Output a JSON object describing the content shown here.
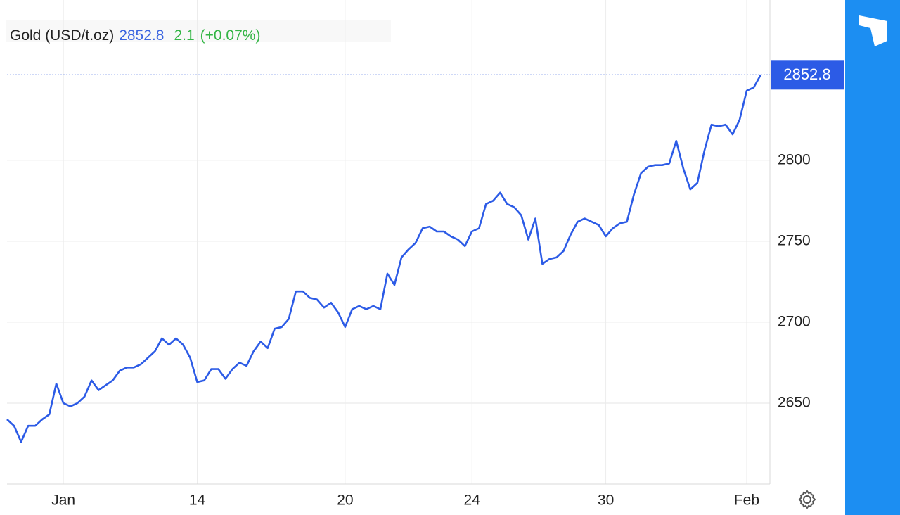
{
  "chart_data": {
    "type": "line",
    "title": "Gold (USD/t.oz)",
    "last_price": 2852.8,
    "change": 2.1,
    "change_percent": "(+0.07%)",
    "color": "#2c5be6",
    "categories": [
      null,
      null,
      null,
      null,
      null,
      null,
      null,
      null,
      "Jan",
      null,
      null,
      null,
      null,
      null,
      null,
      null,
      null,
      null,
      null,
      null,
      null,
      null,
      null,
      null,
      null,
      null,
      null,
      "14",
      null,
      null,
      null,
      null,
      null,
      null,
      null,
      null,
      null,
      null,
      null,
      null,
      null,
      null,
      null,
      null,
      null,
      null,
      null,
      null,
      "20",
      null,
      null,
      null,
      null,
      null,
      null,
      null,
      null,
      null,
      null,
      null,
      null,
      null,
      null,
      null,
      null,
      null,
      "24",
      null,
      null,
      null,
      null,
      null,
      null,
      null,
      null,
      null,
      null,
      null,
      null,
      null,
      null,
      null,
      null,
      null,
      null,
      "30",
      null,
      null,
      null,
      null,
      null,
      null,
      null,
      null,
      null,
      null,
      null,
      null,
      null,
      null,
      null,
      null,
      null,
      null,
      null,
      "Feb",
      null,
      null
    ],
    "values": [
      2640,
      2636,
      2626,
      2636,
      2636,
      2640,
      2643,
      2662,
      2650,
      2648,
      2650,
      2654,
      2664,
      2658,
      2661,
      2664,
      2670,
      2672,
      2672,
      2674,
      2678,
      2682,
      2690,
      2686,
      2690,
      2686,
      2678,
      2663,
      2664,
      2671,
      2671,
      2665,
      2671,
      2675,
      2673,
      2682,
      2688,
      2684,
      2696,
      2697,
      2702,
      2719,
      2719,
      2715,
      2714,
      2709,
      2712,
      2706,
      2697,
      2708,
      2710,
      2708,
      2710,
      2708,
      2730,
      2723,
      2740,
      2745,
      2749,
      2758,
      2759,
      2756,
      2756,
      2753,
      2751,
      2747,
      2756,
      2758,
      2773,
      2775,
      2780,
      2773,
      2771,
      2766,
      2751,
      2764,
      2736,
      2739,
      2740,
      2744,
      2754,
      2762,
      2764,
      2762,
      2760,
      2753,
      2758,
      2761,
      2762,
      2779,
      2792,
      2796,
      2797,
      2797,
      2798,
      2812,
      2795,
      2782,
      2786,
      2806,
      2822,
      2821,
      2822,
      2816,
      2825,
      2843,
      2845,
      2852.8
    ],
    "ylim": [
      2600,
      2899
    ],
    "yticks": [
      2650,
      2700,
      2750,
      2800
    ],
    "grid": true
  }
}
